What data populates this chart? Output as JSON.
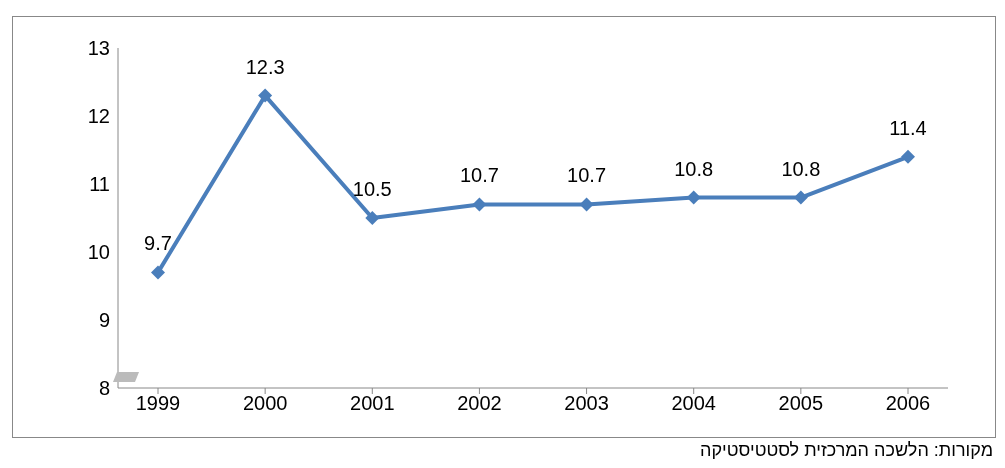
{
  "chart_data": {
    "type": "line",
    "categories": [
      "1999",
      "2000",
      "2001",
      "2002",
      "2003",
      "2004",
      "2005",
      "2006"
    ],
    "series": [
      {
        "color": "#4a7ebb",
        "values": [
          9.7,
          12.3,
          10.5,
          10.7,
          10.7,
          10.8,
          10.8,
          11.4
        ]
      }
    ],
    "ylim": [
      8,
      13
    ],
    "yticks": [
      8,
      9,
      10,
      11,
      12,
      13
    ],
    "grid": false,
    "legend": false,
    "marker": "diamond",
    "line_style": "solid",
    "data_labels": true,
    "annotations": [
      "מקורות: הלשכה המרכזית לסטטיסטיקה"
    ]
  }
}
